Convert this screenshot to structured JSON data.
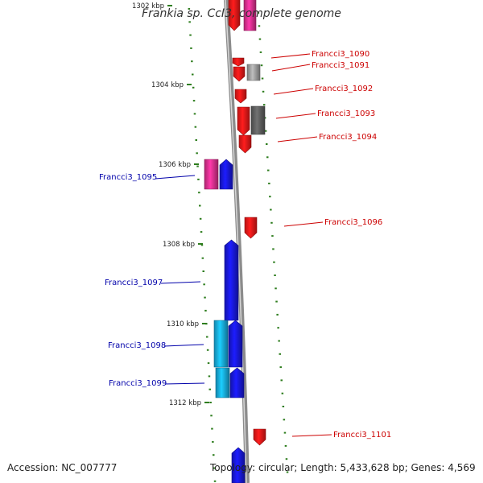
{
  "title": "Frankia sp. CcI3, complete genome",
  "accession_label": "Accession: NC_007777",
  "topology_label": "Topology: circular; Length: 5,433,628 bp; Genes: 4,569",
  "colors": {
    "backbone": "#8c8c8c",
    "tick": "#2e7d1e",
    "reverse_label": "#0000aa",
    "forward_label": "#cc0000",
    "red": "#ff1a1a",
    "blue": "#1a1aee",
    "cyan": "#19b8ee",
    "pink": "#ee3399",
    "grey": "#aaaaaa",
    "darkgrey": "#666666"
  },
  "scale_labels": [
    {
      "text": "1302 kbp"
    },
    {
      "text": "1304 kbp"
    },
    {
      "text": "1306 kbp"
    },
    {
      "text": "1308 kbp"
    },
    {
      "text": "1310 kbp"
    },
    {
      "text": "1312 kbp"
    }
  ],
  "gene_labels": [
    {
      "text": "Francci3_1090",
      "strand": "forward"
    },
    {
      "text": "Francci3_1091",
      "strand": "forward"
    },
    {
      "text": "Francci3_1092",
      "strand": "forward"
    },
    {
      "text": "Francci3_1093",
      "strand": "forward"
    },
    {
      "text": "Francci3_1094",
      "strand": "forward"
    },
    {
      "text": "Francci3_1095",
      "strand": "reverse"
    },
    {
      "text": "Francci3_1096",
      "strand": "forward"
    },
    {
      "text": "Francci3_1097",
      "strand": "reverse"
    },
    {
      "text": "Francci3_1098",
      "strand": "reverse"
    },
    {
      "text": "Francci3_1099",
      "strand": "reverse"
    },
    {
      "text": "Francci3_1101",
      "strand": "forward"
    }
  ]
}
